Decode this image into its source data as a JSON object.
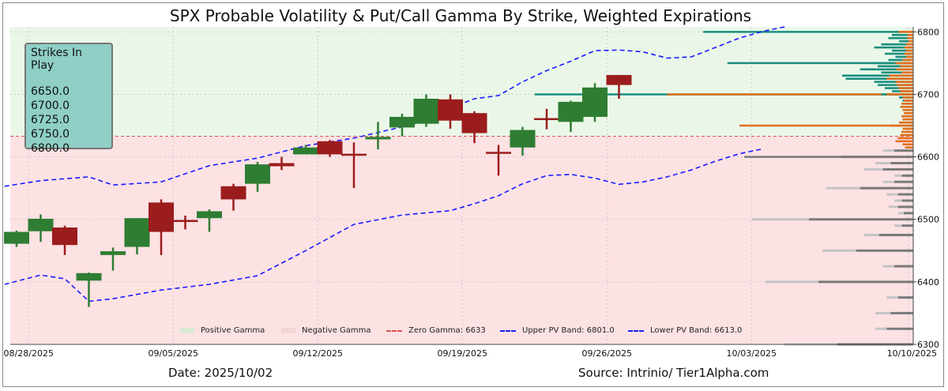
{
  "title": "SPX Probable Volatility & Put/Call Gamma By Strike, Weighted Expirations",
  "strikes_box": {
    "title": "Strikes In Play",
    "strikes": [
      "6650.0",
      "6700.0",
      "6725.0",
      "6750.0",
      "6800.0"
    ]
  },
  "footer": {
    "date": "Date: 2025/10/02",
    "source": "Source: Intrinio/ Tier1Alpha.com"
  },
  "legend": [
    {
      "label": "Positive Gamma",
      "color": "#d9ead5"
    },
    {
      "label": "Negative Gamma",
      "color": "#f2d5d5"
    },
    {
      "label": "Zero Gamma: 6633",
      "color": "#d9534f"
    },
    {
      "label": "Upper PV Band: 6801.0",
      "color": "#1a1aff"
    },
    {
      "label": "Lower PV Band: 6613.0",
      "color": "#1a1aff"
    }
  ],
  "colors": {
    "up_candle": "#2e7d32",
    "down_candle": "#9b1c1c",
    "positive_zone": "#eaf7e8",
    "negative_zone": "#fde2e4",
    "band": "#1a1aff",
    "zero_gamma": "#d9534f",
    "call_gamma": "#1a8f80",
    "put_gamma": "#e07020",
    "neg_gamma": "#7a7a7a",
    "neg_gamma_light": "#c4c4c4"
  },
  "chart_data": {
    "type": "candlestick",
    "y_axis": {
      "ticks": [
        6300,
        6400,
        6500,
        6600,
        6700,
        6800
      ],
      "range": [
        6300,
        6808
      ]
    },
    "x_axis": {
      "tick_labels": [
        "08/28/2025",
        "09/05/2025",
        "09/12/2025",
        "09/19/2025",
        "09/26/2025",
        "10/03/2025",
        "10/10/2025"
      ],
      "tick_index": [
        0.5,
        6.5,
        12.5,
        18.5,
        24.5,
        30.5,
        37.0
      ]
    },
    "zero_gamma": 6633,
    "upper_pv_band": 6801.0,
    "lower_pv_band": 6613.0,
    "candles": [
      {
        "o": 6461,
        "h": 6482,
        "l": 6456,
        "c": 6480
      },
      {
        "o": 6481,
        "h": 6508,
        "l": 6464,
        "c": 6501
      },
      {
        "o": 6487,
        "h": 6490,
        "l": 6443,
        "c": 6459
      },
      {
        "o": 6402,
        "h": 6415,
        "l": 6360,
        "c": 6414
      },
      {
        "o": 6443,
        "h": 6455,
        "l": 6418,
        "c": 6449
      },
      {
        "o": 6456,
        "h": 6502,
        "l": 6444,
        "c": 6502
      },
      {
        "o": 6527,
        "h": 6532,
        "l": 6443,
        "c": 6480
      },
      {
        "o": 6499,
        "h": 6506,
        "l": 6484,
        "c": 6496
      },
      {
        "o": 6502,
        "h": 6516,
        "l": 6480,
        "c": 6513
      },
      {
        "o": 6553,
        "h": 6557,
        "l": 6514,
        "c": 6532
      },
      {
        "o": 6557,
        "h": 6592,
        "l": 6544,
        "c": 6588
      },
      {
        "o": 6590,
        "h": 6600,
        "l": 6579,
        "c": 6585
      },
      {
        "o": 6604,
        "h": 6619,
        "l": 6604,
        "c": 6615
      },
      {
        "o": 6625,
        "h": 6627,
        "l": 6600,
        "c": 6604
      },
      {
        "o": 6605,
        "h": 6623,
        "l": 6550,
        "c": 6603
      },
      {
        "o": 6628,
        "h": 6656,
        "l": 6612,
        "c": 6632
      },
      {
        "o": 6647,
        "h": 6669,
        "l": 6633,
        "c": 6664
      },
      {
        "o": 6653,
        "h": 6700,
        "l": 6648,
        "c": 6693
      },
      {
        "o": 6692,
        "h": 6700,
        "l": 6645,
        "c": 6658
      },
      {
        "o": 6670,
        "h": 6673,
        "l": 6622,
        "c": 6638
      },
      {
        "o": 6608,
        "h": 6619,
        "l": 6570,
        "c": 6605
      },
      {
        "o": 6615,
        "h": 6648,
        "l": 6602,
        "c": 6643
      },
      {
        "o": 6662,
        "h": 6677,
        "l": 6644,
        "c": 6661
      },
      {
        "o": 6656,
        "h": 6690,
        "l": 6640,
        "c": 6688
      },
      {
        "o": 6664,
        "h": 6718,
        "l": 6656,
        "c": 6711
      },
      {
        "o": 6731,
        "h": 6731,
        "l": 6693,
        "c": 6715
      }
    ],
    "upper_band": [
      [
        -0.5,
        6553
      ],
      [
        1,
        6562
      ],
      [
        3,
        6568
      ],
      [
        4,
        6555
      ],
      [
        6,
        6560
      ],
      [
        8,
        6586
      ],
      [
        10,
        6598
      ],
      [
        12,
        6618
      ],
      [
        14,
        6630
      ],
      [
        16,
        6648
      ],
      [
        17,
        6658
      ],
      [
        18,
        6678
      ],
      [
        19,
        6693
      ],
      [
        20,
        6698
      ],
      [
        21,
        6720
      ],
      [
        22,
        6738
      ],
      [
        23,
        6753
      ],
      [
        24,
        6770
      ],
      [
        25,
        6771
      ],
      [
        26,
        6768
      ],
      [
        27,
        6758
      ],
      [
        28,
        6760
      ],
      [
        29,
        6775
      ],
      [
        30,
        6790
      ],
      [
        31,
        6801
      ],
      [
        32,
        6809
      ]
    ],
    "lower_band": [
      [
        -0.5,
        6396
      ],
      [
        1,
        6411
      ],
      [
        2,
        6405
      ],
      [
        3,
        6369
      ],
      [
        4,
        6373
      ],
      [
        6,
        6387
      ],
      [
        8,
        6396
      ],
      [
        10,
        6410
      ],
      [
        12,
        6450
      ],
      [
        14,
        6492
      ],
      [
        16,
        6507
      ],
      [
        18,
        6514
      ],
      [
        19,
        6525
      ],
      [
        20,
        6538
      ],
      [
        21,
        6557
      ],
      [
        22,
        6570
      ],
      [
        23,
        6572
      ],
      [
        24,
        6566
      ],
      [
        25,
        6556
      ],
      [
        26,
        6560
      ],
      [
        27,
        6568
      ],
      [
        28,
        6579
      ],
      [
        29,
        6593
      ],
      [
        30,
        6605
      ],
      [
        31,
        6613
      ]
    ],
    "key_lines": [
      {
        "strike": 6800,
        "start": 28.5,
        "color": "call"
      },
      {
        "strike": 6750,
        "start": 29.5,
        "color": "call"
      },
      {
        "strike": 6700,
        "start": 21.5,
        "color": "call"
      },
      {
        "strike": 6700,
        "start": 27.0,
        "color": "put"
      },
      {
        "strike": 6650,
        "start": 30.0,
        "color": "put"
      },
      {
        "strike": 6600,
        "start": 30.2,
        "color": "neg"
      }
    ],
    "gamma_profile": [
      {
        "strike": 6800,
        "call": 25,
        "put": 25
      },
      {
        "strike": 6795,
        "call": 30,
        "put": 10
      },
      {
        "strike": 6790,
        "call": 35,
        "put": 10
      },
      {
        "strike": 6785,
        "call": 20,
        "put": 8
      },
      {
        "strike": 6780,
        "call": 45,
        "put": 12
      },
      {
        "strike": 6775,
        "call": 55,
        "put": 15
      },
      {
        "strike": 6770,
        "call": 30,
        "put": 12
      },
      {
        "strike": 6765,
        "call": 40,
        "put": 15
      },
      {
        "strike": 6760,
        "call": 25,
        "put": 12
      },
      {
        "strike": 6755,
        "call": 35,
        "put": 18
      },
      {
        "strike": 6750,
        "call": 60,
        "put": 30
      },
      {
        "strike": 6745,
        "call": 50,
        "put": 22
      },
      {
        "strike": 6740,
        "call": 75,
        "put": 28
      },
      {
        "strike": 6735,
        "call": 45,
        "put": 20
      },
      {
        "strike": 6730,
        "call": 100,
        "put": 40
      },
      {
        "strike": 6725,
        "call": 95,
        "put": 45
      },
      {
        "strike": 6720,
        "call": 55,
        "put": 30
      },
      {
        "strike": 6715,
        "call": 50,
        "put": 28
      },
      {
        "strike": 6710,
        "call": 40,
        "put": 25
      },
      {
        "strike": 6705,
        "call": 30,
        "put": 22
      },
      {
        "strike": 6700,
        "call": 45,
        "put": 45
      },
      {
        "strike": 6695,
        "call": 20,
        "put": 18
      },
      {
        "strike": 6690,
        "call": 15,
        "put": 16
      },
      {
        "strike": 6685,
        "call": 12,
        "put": 20
      },
      {
        "strike": 6680,
        "call": 10,
        "put": 22
      },
      {
        "strike": 6675,
        "call": 8,
        "put": 18
      },
      {
        "strike": 6670,
        "call": 6,
        "put": 16
      },
      {
        "strike": 6665,
        "call": 5,
        "put": 20
      },
      {
        "strike": 6660,
        "call": 4,
        "put": 18
      },
      {
        "strike": 6655,
        "call": 4,
        "put": 24
      },
      {
        "strike": 6650,
        "call": 3,
        "put": 40
      },
      {
        "strike": 6645,
        "call": 3,
        "put": 18
      },
      {
        "strike": 6640,
        "call": 2,
        "put": 20
      },
      {
        "strike": 6635,
        "call": 2,
        "put": 22
      },
      {
        "strike": 6630,
        "call": 0,
        "put": 26
      },
      {
        "strike": 6625,
        "call": 0,
        "put": 30
      },
      {
        "strike": 6620,
        "call": 0,
        "put": 18
      },
      {
        "strike": 6615,
        "call": 0,
        "put": 14
      }
    ],
    "negative_gamma_profile": [
      {
        "strike": 6610,
        "dark": 10,
        "light": 6
      },
      {
        "strike": 6600,
        "dark": 38,
        "light": 22
      },
      {
        "strike": 6590,
        "dark": 12,
        "light": 8
      },
      {
        "strike": 6580,
        "dark": 16,
        "light": 10
      },
      {
        "strike": 6570,
        "dark": 6,
        "light": 4
      },
      {
        "strike": 6560,
        "dark": 10,
        "light": 6
      },
      {
        "strike": 6550,
        "dark": 28,
        "light": 18
      },
      {
        "strike": 6540,
        "dark": 8,
        "light": 6
      },
      {
        "strike": 6530,
        "dark": 6,
        "light": 4
      },
      {
        "strike": 6520,
        "dark": 8,
        "light": 5
      },
      {
        "strike": 6510,
        "dark": 5,
        "light": 3
      },
      {
        "strike": 6500,
        "dark": 55,
        "light": 30
      },
      {
        "strike": 6490,
        "dark": 6,
        "light": 4
      },
      {
        "strike": 6475,
        "dark": 18,
        "light": 8
      },
      {
        "strike": 6450,
        "dark": 30,
        "light": 18
      },
      {
        "strike": 6425,
        "dark": 10,
        "light": 6
      },
      {
        "strike": 6400,
        "dark": 50,
        "light": 28
      },
      {
        "strike": 6375,
        "dark": 8,
        "light": 6
      },
      {
        "strike": 6350,
        "dark": 12,
        "light": 8
      },
      {
        "strike": 6325,
        "dark": 14,
        "light": 6
      },
      {
        "strike": 6300,
        "dark": 40,
        "light": 28
      }
    ]
  }
}
